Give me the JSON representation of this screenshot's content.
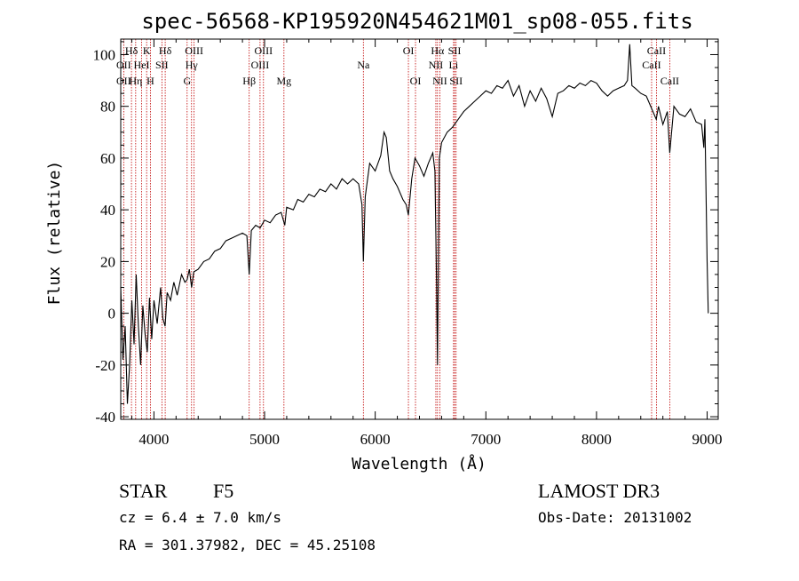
{
  "chart_data": {
    "type": "line",
    "title": "spec-56568-KP195920N454621M01_sp08-055.fits",
    "xlabel": "Wavelength (Å)",
    "ylabel": "Flux (relative)",
    "xlim": [
      3700,
      9100
    ],
    "ylim": [
      -41,
      106
    ],
    "x_ticks": [
      4000,
      5000,
      6000,
      7000,
      8000,
      9000
    ],
    "y_ticks": [
      -40,
      -20,
      0,
      20,
      40,
      60,
      80,
      100
    ],
    "series": [
      {
        "name": "flux",
        "points": [
          [
            3700,
            10
          ],
          [
            3720,
            -18
          ],
          [
            3740,
            -5
          ],
          [
            3760,
            -35
          ],
          [
            3780,
            -20
          ],
          [
            3800,
            5
          ],
          [
            3820,
            -12
          ],
          [
            3840,
            15
          ],
          [
            3860,
            -5
          ],
          [
            3880,
            -20
          ],
          [
            3900,
            3
          ],
          [
            3920,
            -8
          ],
          [
            3940,
            -15
          ],
          [
            3960,
            6
          ],
          [
            3980,
            -10
          ],
          [
            4000,
            5
          ],
          [
            4030,
            -4
          ],
          [
            4060,
            10
          ],
          [
            4080,
            -2
          ],
          [
            4101,
            -5
          ],
          [
            4120,
            8
          ],
          [
            4150,
            5
          ],
          [
            4180,
            12
          ],
          [
            4210,
            7
          ],
          [
            4250,
            15
          ],
          [
            4280,
            12
          ],
          [
            4300,
            13
          ],
          [
            4320,
            17
          ],
          [
            4340,
            10
          ],
          [
            4360,
            16
          ],
          [
            4400,
            17
          ],
          [
            4450,
            20
          ],
          [
            4500,
            21
          ],
          [
            4550,
            24
          ],
          [
            4600,
            25
          ],
          [
            4650,
            28
          ],
          [
            4700,
            29
          ],
          [
            4750,
            30
          ],
          [
            4800,
            31
          ],
          [
            4840,
            30
          ],
          [
            4861,
            15
          ],
          [
            4880,
            32
          ],
          [
            4920,
            34
          ],
          [
            4960,
            33
          ],
          [
            5000,
            36
          ],
          [
            5050,
            35
          ],
          [
            5100,
            38
          ],
          [
            5150,
            39
          ],
          [
            5183,
            34
          ],
          [
            5200,
            41
          ],
          [
            5260,
            40
          ],
          [
            5300,
            44
          ],
          [
            5350,
            43
          ],
          [
            5400,
            46
          ],
          [
            5450,
            45
          ],
          [
            5500,
            48
          ],
          [
            5550,
            47
          ],
          [
            5600,
            50
          ],
          [
            5650,
            48
          ],
          [
            5700,
            52
          ],
          [
            5750,
            50
          ],
          [
            5800,
            52
          ],
          [
            5850,
            50
          ],
          [
            5880,
            42
          ],
          [
            5893,
            20
          ],
          [
            5910,
            45
          ],
          [
            5950,
            58
          ],
          [
            6000,
            55
          ],
          [
            6050,
            61
          ],
          [
            6080,
            70
          ],
          [
            6100,
            68
          ],
          [
            6130,
            55
          ],
          [
            6160,
            52
          ],
          [
            6200,
            49
          ],
          [
            6250,
            44
          ],
          [
            6280,
            42
          ],
          [
            6300,
            38
          ],
          [
            6330,
            52
          ],
          [
            6360,
            60
          ],
          [
            6400,
            57
          ],
          [
            6440,
            53
          ],
          [
            6480,
            58
          ],
          [
            6520,
            62
          ],
          [
            6540,
            55
          ],
          [
            6555,
            10
          ],
          [
            6563,
            -20
          ],
          [
            6570,
            15
          ],
          [
            6580,
            60
          ],
          [
            6600,
            66
          ],
          [
            6650,
            70
          ],
          [
            6700,
            72
          ],
          [
            6750,
            75
          ],
          [
            6800,
            78
          ],
          [
            6850,
            80
          ],
          [
            6900,
            82
          ],
          [
            6950,
            84
          ],
          [
            7000,
            86
          ],
          [
            7050,
            85
          ],
          [
            7100,
            88
          ],
          [
            7150,
            87
          ],
          [
            7200,
            90
          ],
          [
            7250,
            84
          ],
          [
            7300,
            88
          ],
          [
            7350,
            80
          ],
          [
            7400,
            86
          ],
          [
            7450,
            82
          ],
          [
            7500,
            87
          ],
          [
            7550,
            83
          ],
          [
            7600,
            76
          ],
          [
            7650,
            85
          ],
          [
            7700,
            86
          ],
          [
            7750,
            88
          ],
          [
            7800,
            87
          ],
          [
            7850,
            89
          ],
          [
            7900,
            88
          ],
          [
            7950,
            90
          ],
          [
            8000,
            89
          ],
          [
            8050,
            86
          ],
          [
            8100,
            84
          ],
          [
            8150,
            86
          ],
          [
            8200,
            87
          ],
          [
            8250,
            88
          ],
          [
            8280,
            90
          ],
          [
            8300,
            104
          ],
          [
            8320,
            88
          ],
          [
            8350,
            87
          ],
          [
            8400,
            85
          ],
          [
            8450,
            84
          ],
          [
            8500,
            79
          ],
          [
            8540,
            75
          ],
          [
            8560,
            80
          ],
          [
            8600,
            73
          ],
          [
            8640,
            78
          ],
          [
            8662,
            62
          ],
          [
            8700,
            80
          ],
          [
            8750,
            77
          ],
          [
            8800,
            76
          ],
          [
            8850,
            79
          ],
          [
            8900,
            74
          ],
          [
            8950,
            73
          ],
          [
            8970,
            64
          ],
          [
            8980,
            75
          ],
          [
            9000,
            20
          ],
          [
            9010,
            0
          ]
        ]
      }
    ],
    "lines": [
      {
        "label": "Hδ",
        "x": 3797,
        "row": 1
      },
      {
        "label": "OII",
        "x": 3727,
        "row": 2
      },
      {
        "label": "OII",
        "x": 3727,
        "row": 3
      },
      {
        "label": "K",
        "x": 3934,
        "row": 1
      },
      {
        "label": "HeI",
        "x": 3889,
        "row": 2
      },
      {
        "label": "Hη",
        "x": 3835,
        "row": 3
      },
      {
        "label": "H",
        "x": 3968,
        "row": 3
      },
      {
        "label": "Hδ",
        "x": 4102,
        "row": 1
      },
      {
        "label": "SII",
        "x": 4072,
        "row": 2
      },
      {
        "label": "OIII",
        "x": 4363,
        "row": 1
      },
      {
        "label": "Hγ",
        "x": 4340,
        "row": 2
      },
      {
        "label": "G",
        "x": 4300,
        "row": 3
      },
      {
        "label": "OIII",
        "x": 4990,
        "row": 1
      },
      {
        "label": "OIII",
        "x": 4959,
        "row": 2
      },
      {
        "label": "Hβ",
        "x": 4861,
        "row": 3
      },
      {
        "label": "Mg",
        "x": 5175,
        "row": 3
      },
      {
        "label": "Na",
        "x": 5893,
        "row": 2
      },
      {
        "label": "OI",
        "x": 6300,
        "row": 1
      },
      {
        "label": "OI",
        "x": 6364,
        "row": 3
      },
      {
        "label": "Hα",
        "x": 6563,
        "row": 1
      },
      {
        "label": "SII",
        "x": 6717,
        "row": 1
      },
      {
        "label": "NII",
        "x": 6548,
        "row": 2
      },
      {
        "label": "Li",
        "x": 6708,
        "row": 2
      },
      {
        "label": "NII",
        "x": 6584,
        "row": 3
      },
      {
        "label": "SII",
        "x": 6731,
        "row": 3
      },
      {
        "label": "CaII",
        "x": 8542,
        "row": 1
      },
      {
        "label": "CaII",
        "x": 8498,
        "row": 2
      },
      {
        "label": "CaII",
        "x": 8662,
        "row": 3
      }
    ]
  },
  "info": {
    "object_class": "STAR",
    "subclass": "F5",
    "survey": "LAMOST DR3",
    "cz": "cz = 6.4 ± 7.0 km/s",
    "obs_date": "Obs-Date: 20131002",
    "coords": "RA = 301.37982, DEC =  45.25108"
  },
  "colors": {
    "line_marker": "#c00000",
    "spectrum": "#000000"
  }
}
